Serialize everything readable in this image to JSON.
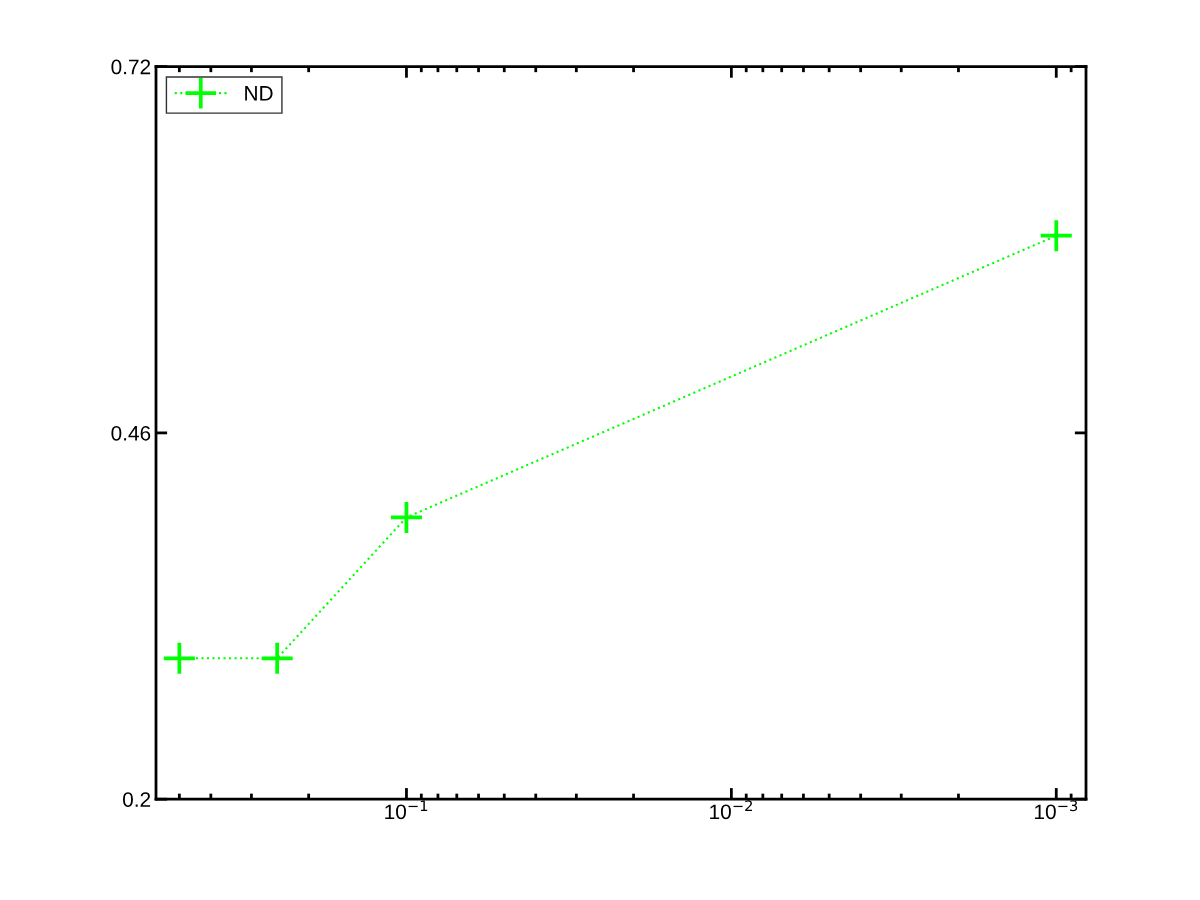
{
  "chart_data": {
    "type": "line",
    "x": [
      0.5,
      0.25,
      0.1,
      0.001
    ],
    "series": [
      {
        "name": "ND",
        "color": "#00ff00",
        "values": [
          0.3,
          0.3,
          0.4,
          0.6
        ]
      }
    ],
    "log": "x",
    "xlim": [
      0.59,
      0.00081
    ],
    "ylim": [
      0.2,
      0.72
    ],
    "xticks": [
      {
        "value": 0.1,
        "label": "10$^{−1}$"
      },
      {
        "value": 0.01,
        "label": "10$^{−2}$"
      },
      {
        "value": 0.001,
        "label": "10$^{−3}$"
      }
    ],
    "yticks": [
      0.2,
      0.46,
      0.72
    ],
    "marker": "cross",
    "line_style": "dotted",
    "grid": false,
    "legend": "top left"
  }
}
